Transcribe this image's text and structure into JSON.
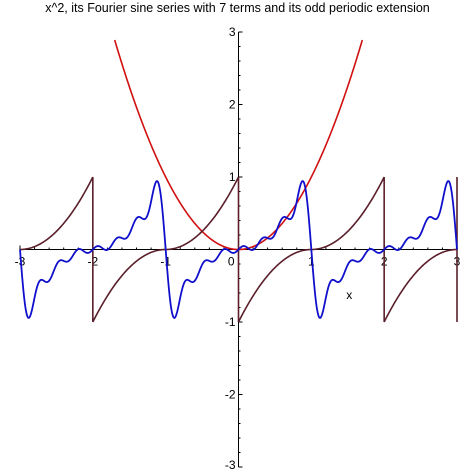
{
  "chart_data": {
    "type": "line",
    "title": "x^2, its Fourier sine series with 7 terms and its odd periodic extension",
    "xlabel": "x",
    "ylabel": "",
    "xlim": [
      -3,
      3
    ],
    "ylim": [
      -3,
      3
    ],
    "x_ticks": [
      -3,
      -2,
      -1,
      0,
      1,
      2,
      3
    ],
    "y_ticks": [
      -3,
      -2,
      -1,
      1,
      2,
      3
    ],
    "grid": false,
    "legend": "none",
    "series": [
      {
        "color": "#d01010",
        "kind": "function",
        "expression": "x^2",
        "domain": [
          -1.7,
          1.7
        ]
      },
      {
        "color": "#5a1f2a",
        "kind": "odd-periodic-extension",
        "period": 2,
        "domain": [
          -3,
          3
        ]
      },
      {
        "color": "#1010cc",
        "kind": "fourier-sine-series",
        "terms": 7,
        "domain": [
          -3,
          3
        ]
      }
    ]
  }
}
